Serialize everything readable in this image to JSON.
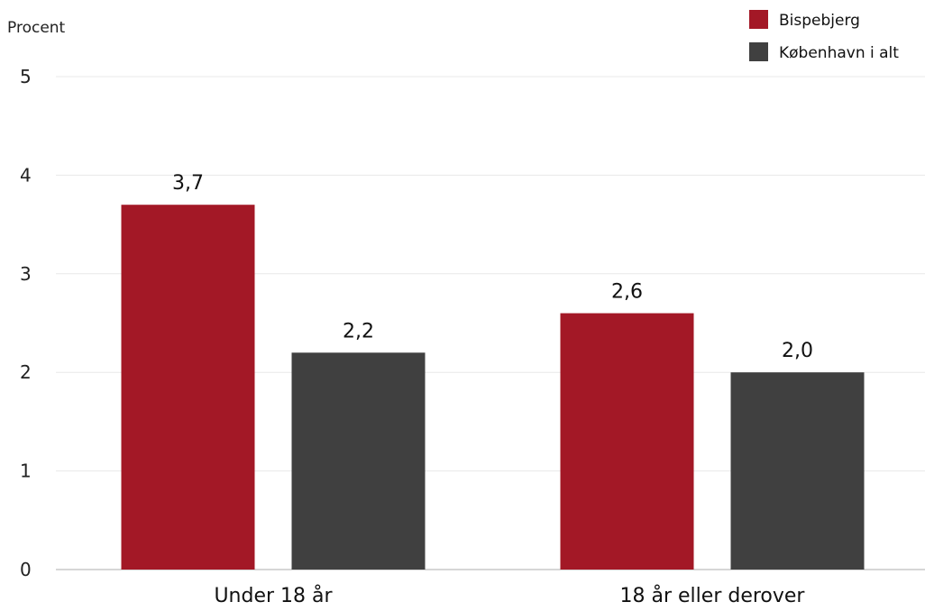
{
  "chart_data": {
    "type": "bar",
    "ylabel": "Procent",
    "ylim": [
      0,
      5
    ],
    "yticks": [
      "0",
      "1",
      "2",
      "3",
      "4",
      "5"
    ],
    "categories": [
      "Under 18 år",
      "18 år eller derover"
    ],
    "series": [
      {
        "name": "Bispebjerg",
        "values": [
          3.7,
          2.6
        ],
        "labels": [
          "3,7",
          "2,6"
        ],
        "color": "#A31826"
      },
      {
        "name": "København i alt",
        "values": [
          2.2,
          2.0
        ],
        "labels": [
          "2,2",
          "2,0"
        ],
        "color": "#404040"
      }
    ],
    "grid": true,
    "legend_position": "top-right"
  }
}
